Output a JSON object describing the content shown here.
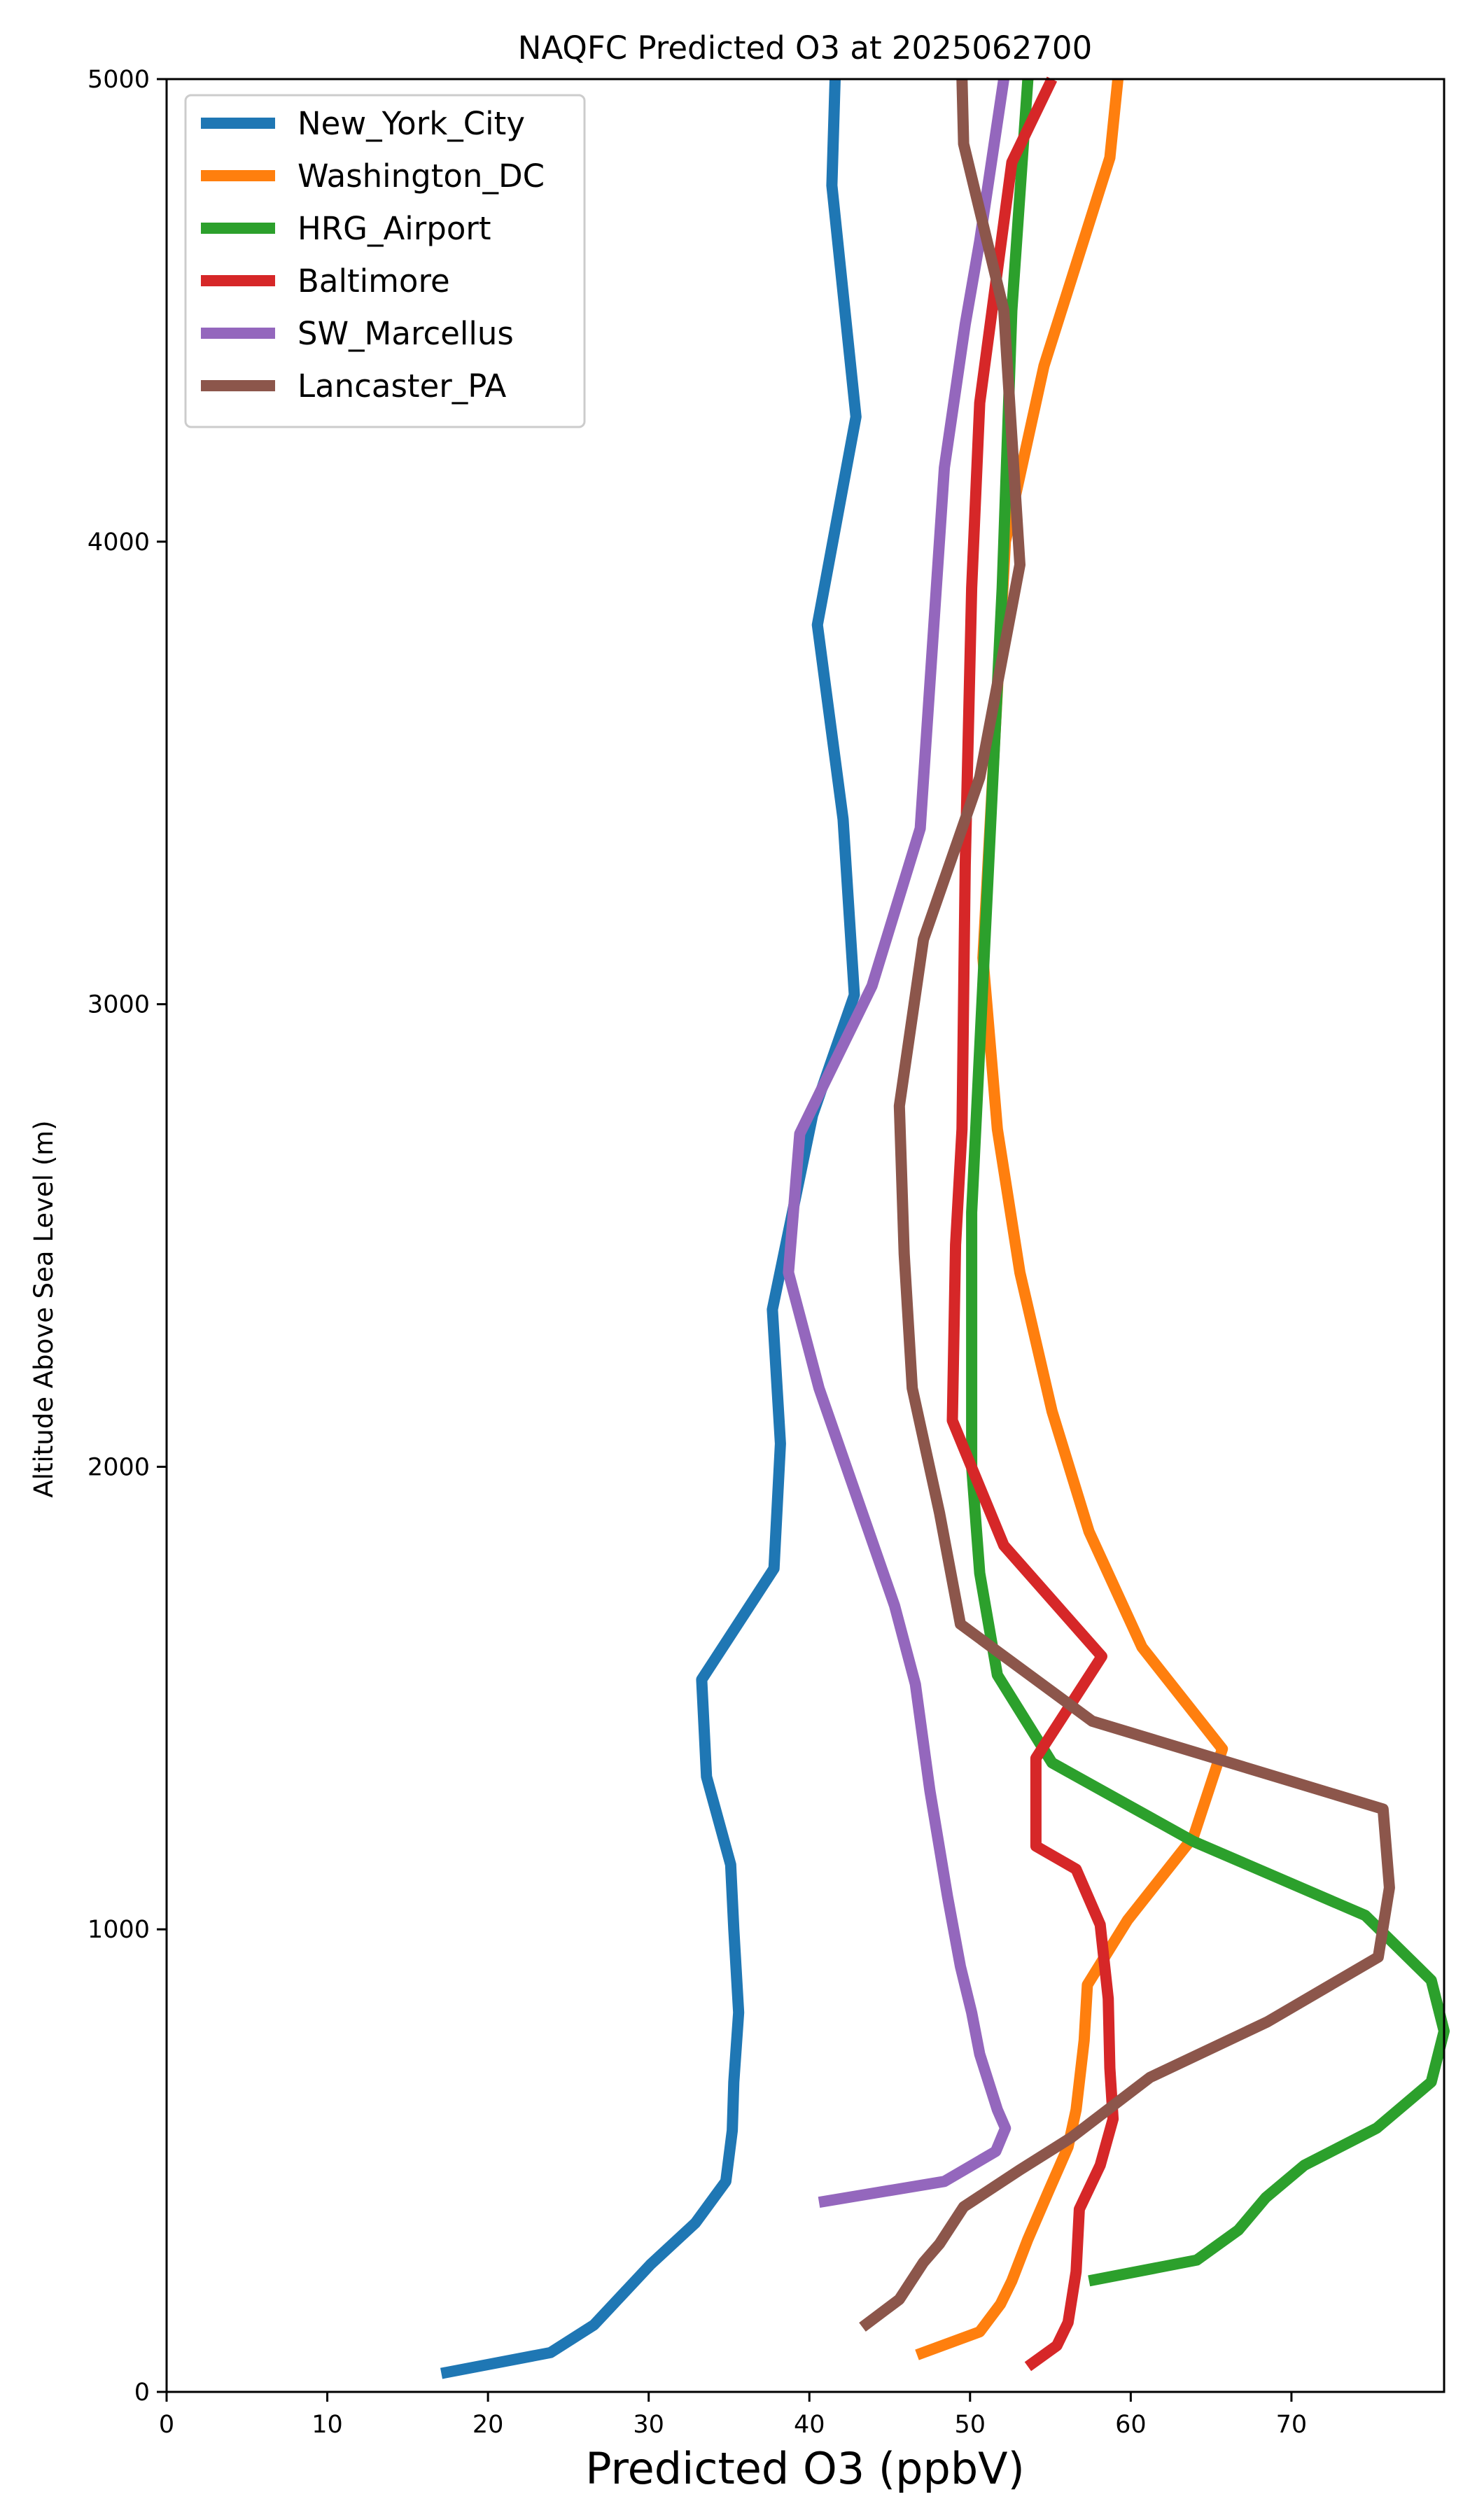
{
  "chart_data": {
    "type": "line",
    "title": "NAQFC Predicted O3 at 2025062700",
    "xlabel": "Predicted O3 (ppbV)",
    "ylabel": "Altitude Above Sea Level (m)",
    "xlim": [
      0,
      79.5
    ],
    "ylim": [
      0,
      5000
    ],
    "xticks": [
      0,
      10,
      20,
      30,
      40,
      50,
      60,
      70
    ],
    "yticks": [
      0,
      1000,
      2000,
      3000,
      4000,
      5000
    ],
    "grid": false,
    "legend_position": "top-left",
    "series": [
      {
        "name": "New_York_City",
        "color": "#1f77b4",
        "points": [
          [
            17.1,
            40
          ],
          [
            23.9,
            85
          ],
          [
            26.6,
            145
          ],
          [
            30.1,
            275
          ],
          [
            32.9,
            365
          ],
          [
            34.8,
            455
          ],
          [
            35.2,
            565
          ],
          [
            35.3,
            670
          ],
          [
            35.6,
            820
          ],
          [
            35.3,
            1000
          ],
          [
            35.1,
            1140
          ],
          [
            33.6,
            1330
          ],
          [
            33.3,
            1540
          ],
          [
            37.8,
            1780
          ],
          [
            38.2,
            2050
          ],
          [
            37.7,
            2340
          ],
          [
            40.2,
            2760
          ],
          [
            42.8,
            3020
          ],
          [
            42.1,
            3400
          ],
          [
            40.5,
            3820
          ],
          [
            42.9,
            4270
          ],
          [
            41.4,
            4770
          ],
          [
            41.6,
            5000
          ]
        ]
      },
      {
        "name": "Washington_DC",
        "color": "#ff7f0e",
        "points": [
          [
            46.7,
            80
          ],
          [
            50.6,
            130
          ],
          [
            51.9,
            190
          ],
          [
            52.6,
            240
          ],
          [
            53.6,
            330
          ],
          [
            54.9,
            435
          ],
          [
            56.1,
            530
          ],
          [
            56.6,
            610
          ],
          [
            57.1,
            760
          ],
          [
            57.3,
            880
          ],
          [
            59.8,
            1020
          ],
          [
            63.9,
            1200
          ],
          [
            65.7,
            1390
          ],
          [
            60.7,
            1610
          ],
          [
            57.4,
            1860
          ],
          [
            55.1,
            2120
          ],
          [
            53.1,
            2420
          ],
          [
            51.7,
            2730
          ],
          [
            50.8,
            3100
          ],
          [
            52.2,
            4000
          ],
          [
            54.6,
            4380
          ],
          [
            58.7,
            4830
          ],
          [
            59.2,
            5000
          ]
        ]
      },
      {
        "name": "HRG_Airport",
        "color": "#2ca02c",
        "points": [
          [
            57.4,
            240
          ],
          [
            64.1,
            285
          ],
          [
            66.7,
            350
          ],
          [
            68.4,
            420
          ],
          [
            70.8,
            490
          ],
          [
            75.3,
            570
          ],
          [
            78.7,
            670
          ],
          [
            79.5,
            780
          ],
          [
            78.7,
            890
          ],
          [
            74.6,
            1030
          ],
          [
            63.9,
            1190
          ],
          [
            55.1,
            1360
          ],
          [
            51.7,
            1550
          ],
          [
            50.6,
            1770
          ],
          [
            50.1,
            2000
          ],
          [
            50.1,
            2550
          ],
          [
            52.0,
            3900
          ],
          [
            52.6,
            4500
          ],
          [
            53.6,
            5000
          ]
        ]
      },
      {
        "name": "Baltimore",
        "color": "#d62728",
        "points": [
          [
            53.6,
            55
          ],
          [
            55.4,
            100
          ],
          [
            56.1,
            150
          ],
          [
            56.6,
            260
          ],
          [
            56.8,
            395
          ],
          [
            58.1,
            490
          ],
          [
            58.9,
            590
          ],
          [
            58.7,
            700
          ],
          [
            58.6,
            850
          ],
          [
            58.1,
            1010
          ],
          [
            56.6,
            1130
          ],
          [
            54.1,
            1180
          ],
          [
            54.1,
            1370
          ],
          [
            58.2,
            1590
          ],
          [
            52.1,
            1830
          ],
          [
            48.9,
            2100
          ],
          [
            49.1,
            2480
          ],
          [
            49.5,
            2730
          ],
          [
            49.7,
            3300
          ],
          [
            50.1,
            3900
          ],
          [
            50.6,
            4300
          ],
          [
            52.6,
            4820
          ],
          [
            55.1,
            5000
          ]
        ]
      },
      {
        "name": "SW_Marcellus",
        "color": "#9467bd",
        "points": [
          [
            40.6,
            410
          ],
          [
            48.4,
            455
          ],
          [
            51.6,
            520
          ],
          [
            52.2,
            570
          ],
          [
            51.7,
            610
          ],
          [
            50.6,
            730
          ],
          [
            50.1,
            820
          ],
          [
            49.4,
            920
          ],
          [
            48.6,
            1070
          ],
          [
            47.5,
            1300
          ],
          [
            46.6,
            1530
          ],
          [
            45.3,
            1700
          ],
          [
            40.6,
            2170
          ],
          [
            38.7,
            2420
          ],
          [
            39.4,
            2720
          ],
          [
            43.9,
            3040
          ],
          [
            46.9,
            3380
          ],
          [
            48.4,
            4160
          ],
          [
            49.7,
            4470
          ],
          [
            50.6,
            4650
          ],
          [
            52.1,
            5000
          ]
        ]
      },
      {
        "name": "Lancaster_PA",
        "color": "#8c564b",
        "points": [
          [
            43.3,
            140
          ],
          [
            45.6,
            200
          ],
          [
            47.1,
            280
          ],
          [
            48.1,
            320
          ],
          [
            49.6,
            400
          ],
          [
            53.1,
            480
          ],
          [
            56.3,
            550
          ],
          [
            61.2,
            680
          ],
          [
            68.5,
            800
          ],
          [
            75.4,
            940
          ],
          [
            76.1,
            1090
          ],
          [
            75.7,
            1260
          ],
          [
            57.6,
            1450
          ],
          [
            49.4,
            1660
          ],
          [
            48.1,
            1900
          ],
          [
            46.4,
            2170
          ],
          [
            45.9,
            2460
          ],
          [
            45.6,
            2780
          ],
          [
            47.1,
            3140
          ],
          [
            50.6,
            3490
          ],
          [
            53.1,
            3950
          ],
          [
            52.1,
            4500
          ],
          [
            49.6,
            4860
          ],
          [
            49.5,
            5000
          ]
        ]
      }
    ]
  }
}
